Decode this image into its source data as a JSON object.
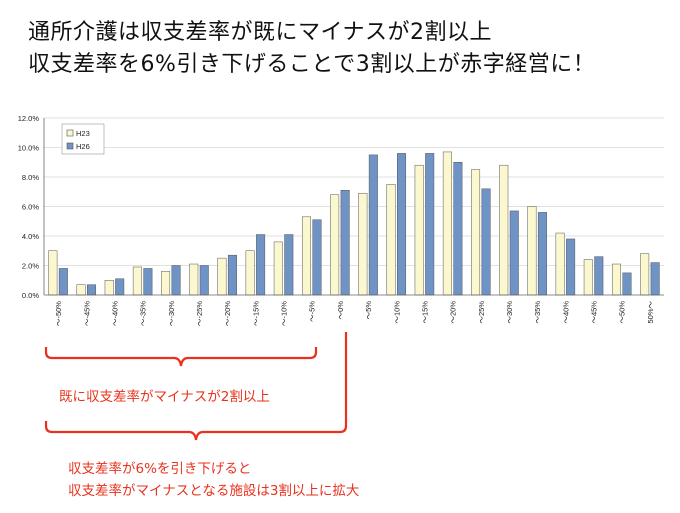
{
  "headline": {
    "line1": "通所介護は収支差率が既にマイナスが2割以上",
    "line2": "収支差率を6%引き下げることで3割以上が赤字経営に！"
  },
  "annotations": {
    "note1": "既に収支差率がマイナスが2割以上",
    "note2_line1": "収支差率が6%を引き下げると",
    "note2_line2": "収支差率がマイナスとなる施設は3割以上に拡大"
  },
  "colors": {
    "h23": "#fbf8cf",
    "h26": "#6e93c4",
    "annotation": "#e8321e"
  },
  "chart_data": {
    "type": "bar",
    "categories": [
      "～-50%",
      "～-45%",
      "～-40%",
      "～-35%",
      "～-30%",
      "～-25%",
      "～-20%",
      "～-15%",
      "～-10%",
      "～-5%",
      "～0%",
      "～5%",
      "～10%",
      "～15%",
      "～20%",
      "～25%",
      "～30%",
      "～35%",
      "～40%",
      "～45%",
      "～50%",
      "50%～"
    ],
    "series": [
      {
        "name": "H23",
        "values": [
          3.0,
          0.7,
          1.0,
          1.9,
          1.6,
          2.1,
          2.5,
          3.0,
          3.6,
          5.3,
          6.8,
          6.9,
          7.5,
          8.8,
          9.7,
          8.5,
          8.8,
          6.0,
          4.2,
          2.4,
          2.1,
          2.8
        ]
      },
      {
        "name": "H26",
        "values": [
          1.8,
          0.7,
          1.1,
          1.8,
          2.0,
          2.0,
          2.7,
          4.1,
          4.1,
          5.1,
          7.1,
          9.5,
          9.6,
          9.6,
          9.0,
          7.2,
          5.7,
          5.6,
          3.8,
          2.6,
          1.5,
          2.2
        ]
      }
    ],
    "yticks": [
      "0.0%",
      "2.0%",
      "4.0%",
      "6.0%",
      "8.0%",
      "10.0%",
      "12.0%"
    ],
    "ylim": [
      0,
      12
    ],
    "legend_position": "top-left",
    "grid": true
  }
}
